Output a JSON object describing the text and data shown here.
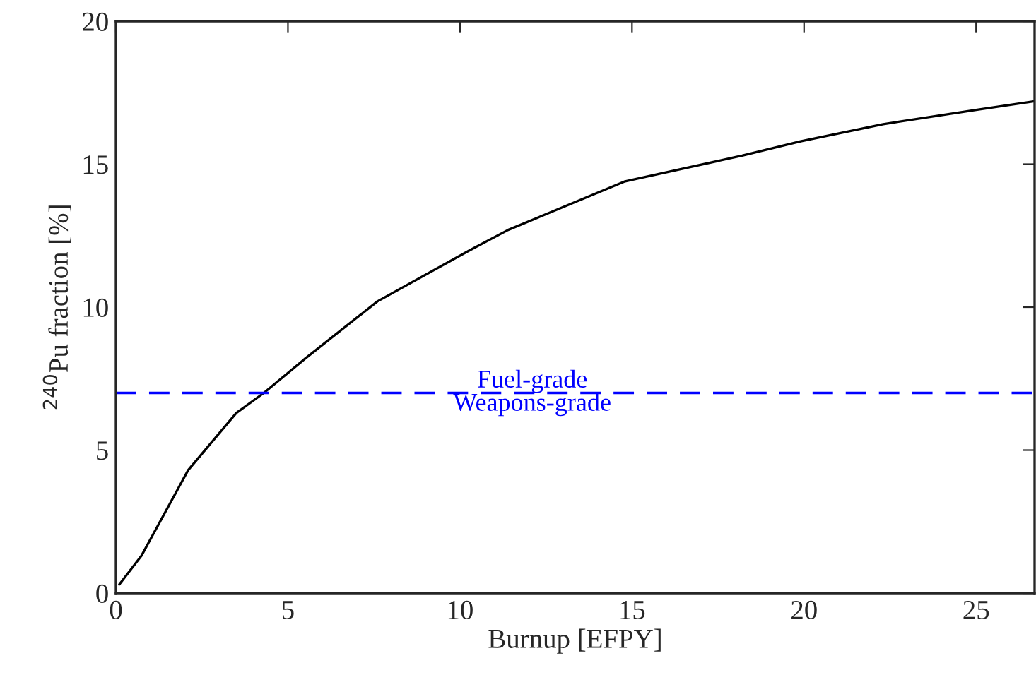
{
  "chart_data": {
    "type": "line",
    "xlabel": "Burnup [EFPY]",
    "ylabel": "$^{240}$Pu fraction [%]",
    "xlim": [
      0,
      26.7
    ],
    "ylim": [
      0,
      20
    ],
    "xticks": [
      0,
      5,
      10,
      15,
      20,
      25
    ],
    "yticks": [
      0,
      5,
      10,
      15,
      20
    ],
    "grid": false,
    "legend": false,
    "series": [
      {
        "color": "#000000",
        "x": [
          0.1,
          0.74,
          2.1,
          3.5,
          4.3,
          5.5,
          7.6,
          10.3,
          11.4,
          14.8,
          18.2,
          19.9,
          22.3,
          25.0,
          26.7
        ],
        "values": [
          0.3,
          1.3,
          4.3,
          6.3,
          7.0,
          8.2,
          10.2,
          12.0,
          12.7,
          14.4,
          15.3,
          15.8,
          16.4,
          16.9,
          17.2
        ]
      }
    ],
    "ref_lines": [
      {
        "axis": "y",
        "value": 7,
        "color": "#0000ff",
        "line_style": "dashed"
      }
    ],
    "annotations": [
      {
        "text": "Fuel-grade",
        "x": 12.1,
        "y": 7
      },
      {
        "text": "Weapons-grade",
        "x": 12.1,
        "y": 7
      }
    ]
  }
}
